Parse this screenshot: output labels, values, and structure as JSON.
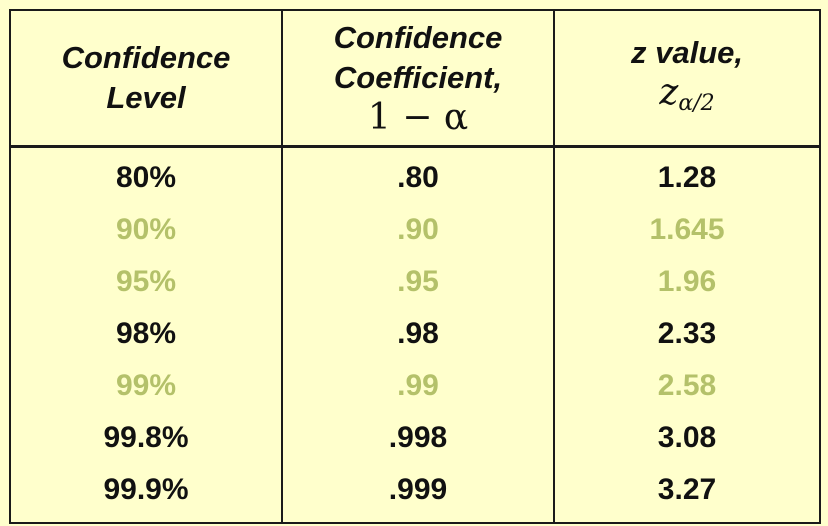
{
  "table": {
    "headers": {
      "col1_line1": "Confidence",
      "col1_line2": "Level",
      "col2_line1": "Confidence",
      "col2_line2": "Coefficient,",
      "col2_math": "1 − α",
      "col3_line1": "z value,",
      "col3_math_base": "z",
      "col3_math_sub": "α/2"
    },
    "rows": [
      {
        "level": "80%",
        "coefficient": ".80",
        "z": "1.28",
        "tone": "dark"
      },
      {
        "level": "90%",
        "coefficient": ".90",
        "z": "1.645",
        "tone": "muted"
      },
      {
        "level": "95%",
        "coefficient": ".95",
        "z": "1.96",
        "tone": "muted"
      },
      {
        "level": "98%",
        "coefficient": ".98",
        "z": "2.33",
        "tone": "dark"
      },
      {
        "level": "99%",
        "coefficient": ".99",
        "z": "2.58",
        "tone": "muted"
      },
      {
        "level": "99.8%",
        "coefficient": ".998",
        "z": "3.08",
        "tone": "dark"
      },
      {
        "level": "99.9%",
        "coefficient": ".999",
        "z": "3.27",
        "tone": "dark"
      }
    ]
  },
  "colors": {
    "background": "#ffffcc",
    "text_dark": "#111111",
    "text_muted": "#b4c16a",
    "border": "#1a1a1a"
  }
}
